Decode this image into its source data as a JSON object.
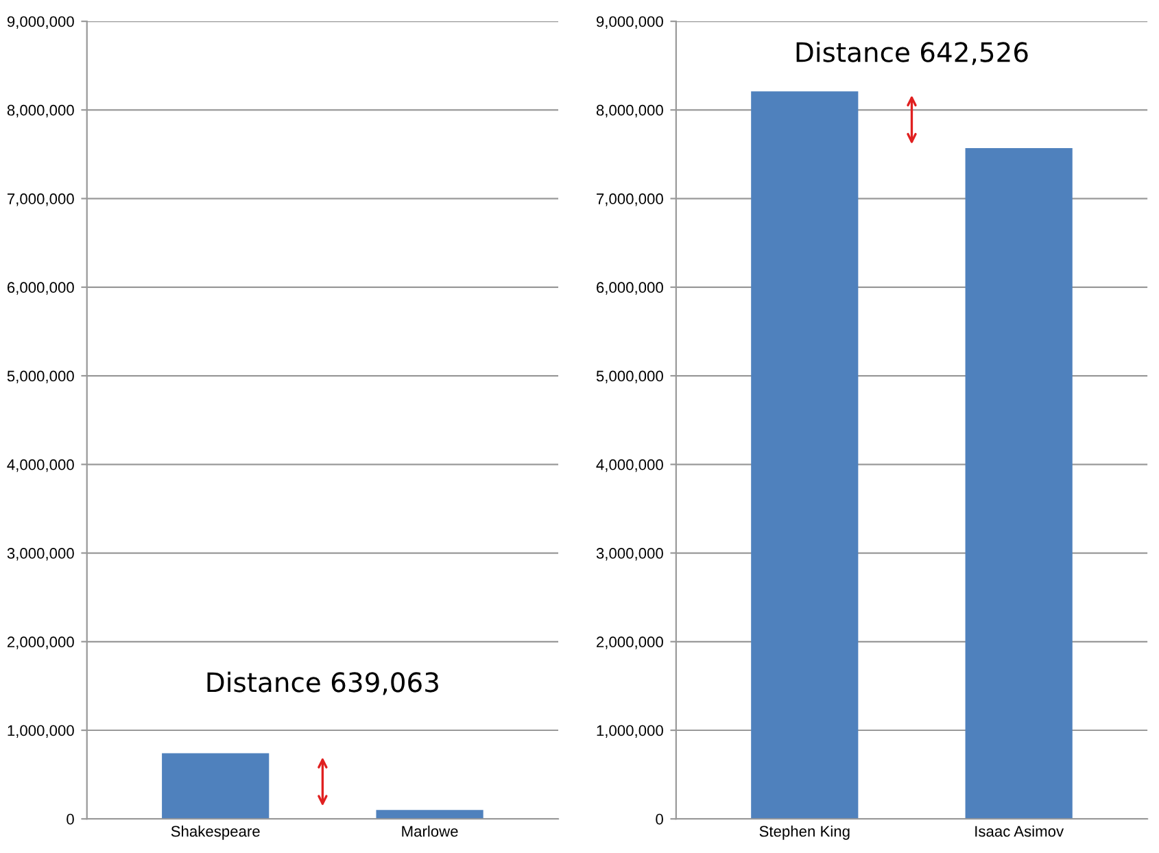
{
  "chart_data": [
    {
      "type": "bar",
      "categories": [
        "Shakespeare",
        "Marlowe"
      ],
      "values": [
        740000,
        100000
      ],
      "color": "#4f81bd",
      "ylim": [
        0,
        9000000
      ],
      "yticks": [
        {
          "value": 0,
          "label": "0"
        },
        {
          "value": 1000000,
          "label": "1,000,000"
        },
        {
          "value": 2000000,
          "label": "2,000,000"
        },
        {
          "value": 3000000,
          "label": "3,000,000"
        },
        {
          "value": 4000000,
          "label": "4,000,000"
        },
        {
          "value": 5000000,
          "label": "5,000,000"
        },
        {
          "value": 6000000,
          "label": "6,000,000"
        },
        {
          "value": 7000000,
          "label": "7,000,000"
        },
        {
          "value": 8000000,
          "label": "8,000,000"
        },
        {
          "value": 9000000,
          "label": "9,000,000"
        }
      ],
      "grid": "y",
      "annotations": [
        "Distance 639,063"
      ]
    },
    {
      "type": "bar",
      "categories": [
        "Stephen King",
        "Isaac Asimov"
      ],
      "values": [
        8210000,
        7570000
      ],
      "color": "#4f81bd",
      "ylim": [
        0,
        9000000
      ],
      "yticks": [
        {
          "value": 0,
          "label": "0"
        },
        {
          "value": 1000000,
          "label": "1,000,000"
        },
        {
          "value": 2000000,
          "label": "2,000,000"
        },
        {
          "value": 3000000,
          "label": "3,000,000"
        },
        {
          "value": 4000000,
          "label": "4,000,000"
        },
        {
          "value": 5000000,
          "label": "5,000,000"
        },
        {
          "value": 6000000,
          "label": "6,000,000"
        },
        {
          "value": 7000000,
          "label": "7,000,000"
        },
        {
          "value": 8000000,
          "label": "8,000,000"
        },
        {
          "value": 9000000,
          "label": "9,000,000"
        }
      ],
      "grid": "y",
      "annotations": [
        "Distance 642,526"
      ]
    }
  ]
}
